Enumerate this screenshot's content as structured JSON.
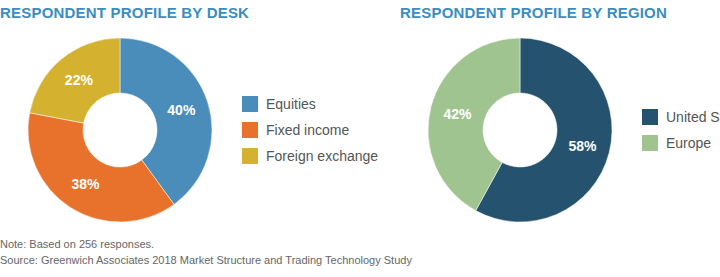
{
  "chart_data": [
    {
      "type": "pie",
      "title": "RESPONDENT PROFILE BY DESK",
      "categories": [
        "Equities",
        "Fixed income",
        "Foreign exchange"
      ],
      "values": [
        40,
        38,
        22
      ],
      "value_labels": [
        "40%",
        "38%",
        "22%"
      ],
      "colors": [
        "#4a8cba",
        "#e8722b",
        "#d4b12e"
      ],
      "data_labels": true,
      "legend": "right"
    },
    {
      "type": "pie",
      "title": "RESPONDENT PROFILE BY REGION",
      "categories": [
        "United States",
        "Europe"
      ],
      "values": [
        58,
        42
      ],
      "value_labels": [
        "58%",
        "42%"
      ],
      "colors": [
        "#25536f",
        "#9fc490"
      ],
      "data_labels": true,
      "legend": "right"
    }
  ],
  "notes": [
    "Note: Based on 256 responses.",
    "Source: Greenwich Associates 2018 Market Structure and Trading Technology Study"
  ]
}
